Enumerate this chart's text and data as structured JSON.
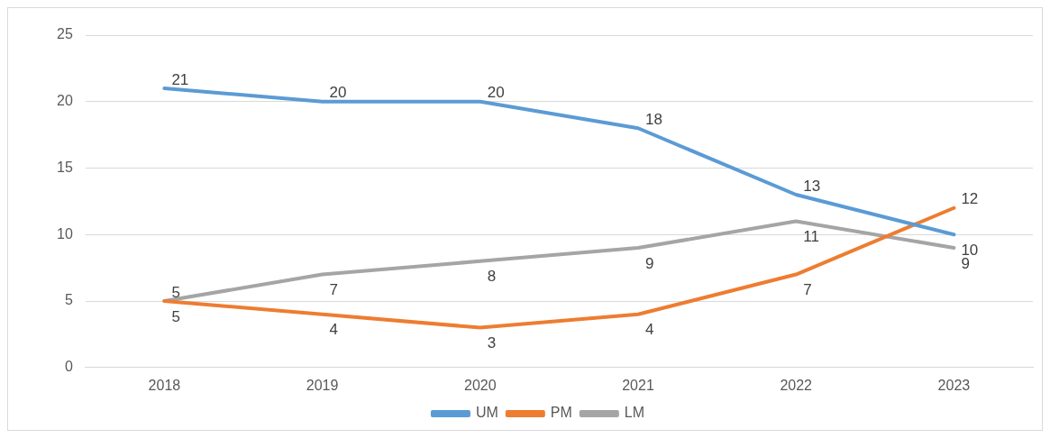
{
  "chart_data": {
    "type": "line",
    "categories": [
      "2018",
      "2019",
      "2020",
      "2021",
      "2022",
      "2023"
    ],
    "series": [
      {
        "name": "UM",
        "color": "#5b9bd5",
        "values": [
          21,
          20,
          20,
          18,
          13,
          10
        ]
      },
      {
        "name": "PM",
        "color": "#ed7d31",
        "values": [
          5,
          4,
          3,
          4,
          7,
          12
        ]
      },
      {
        "name": "LM",
        "color": "#a5a5a5",
        "values": [
          5,
          7,
          8,
          9,
          11,
          9
        ]
      }
    ],
    "ylim": [
      0,
      25
    ],
    "yticks": [
      0,
      5,
      10,
      15,
      20,
      25
    ],
    "grid": "y",
    "legend": "bottom",
    "marker": "none",
    "line_style": "solid",
    "data_labels": true
  }
}
